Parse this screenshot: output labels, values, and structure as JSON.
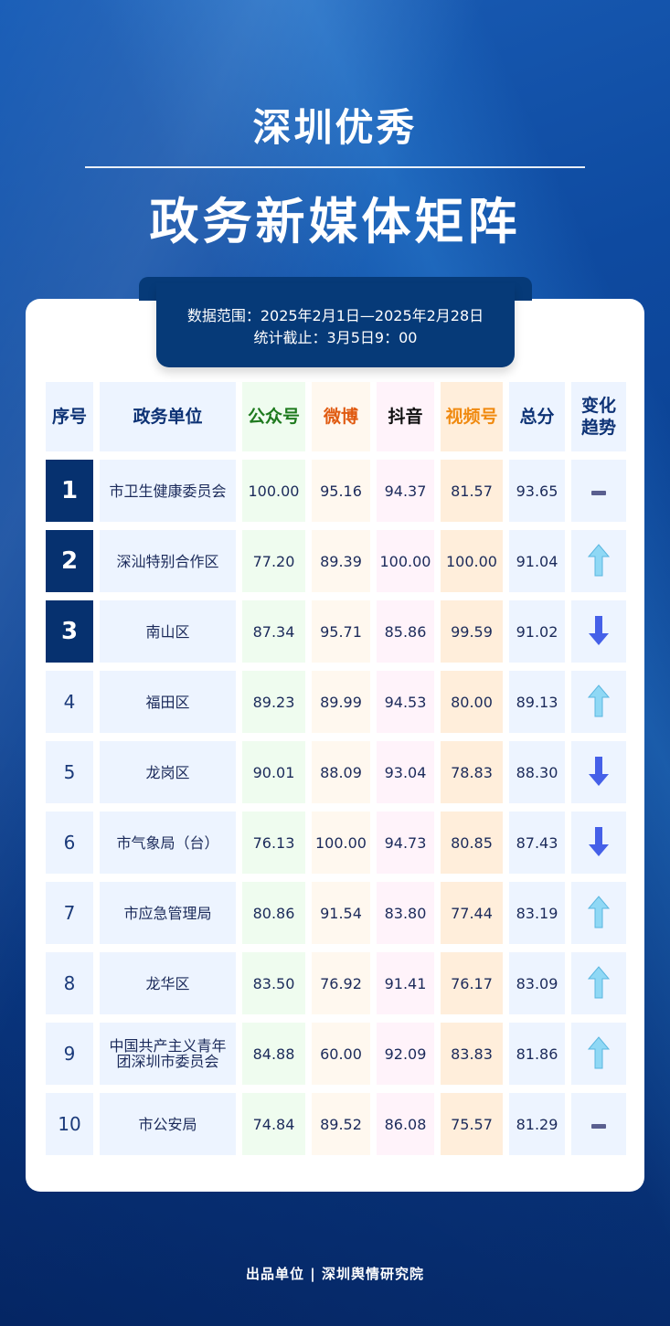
{
  "title": {
    "line1": "深圳优秀",
    "line2": "政务新媒体矩阵"
  },
  "info": {
    "range": "数据范围：2025年2月1日—2025年2月28日",
    "cutoff": "统计截止：3月5日9：00"
  },
  "colors": {
    "wechat": "#1e7a1e",
    "weibo": "#e05a10",
    "douyin": "#111111",
    "video": "#f08a10",
    "header": "#0d3275",
    "rank_top": "#06316f"
  },
  "headers": [
    "序号",
    "政务单位",
    "公众号",
    "微博",
    "抖音",
    "视频号",
    "总分",
    "变化趋势"
  ],
  "rows": [
    {
      "rank": "1",
      "unit": "市卫生健康委员会",
      "wechat": "100.00",
      "weibo": "95.16",
      "douyin": "94.37",
      "video": "81.57",
      "total": "93.65",
      "trend": "flat"
    },
    {
      "rank": "2",
      "unit": "深汕特别合作区",
      "wechat": "77.20",
      "weibo": "89.39",
      "douyin": "100.00",
      "video": "100.00",
      "total": "91.04",
      "trend": "up"
    },
    {
      "rank": "3",
      "unit": "南山区",
      "wechat": "87.34",
      "weibo": "95.71",
      "douyin": "85.86",
      "video": "99.59",
      "total": "91.02",
      "trend": "down"
    },
    {
      "rank": "4",
      "unit": "福田区",
      "wechat": "89.23",
      "weibo": "89.99",
      "douyin": "94.53",
      "video": "80.00",
      "total": "89.13",
      "trend": "up"
    },
    {
      "rank": "5",
      "unit": "龙岗区",
      "wechat": "90.01",
      "weibo": "88.09",
      "douyin": "93.04",
      "video": "78.83",
      "total": "88.30",
      "trend": "down"
    },
    {
      "rank": "6",
      "unit": "市气象局（台）",
      "wechat": "76.13",
      "weibo": "100.00",
      "douyin": "94.73",
      "video": "80.85",
      "total": "87.43",
      "trend": "down"
    },
    {
      "rank": "7",
      "unit": "市应急管理局",
      "wechat": "80.86",
      "weibo": "91.54",
      "douyin": "83.80",
      "video": "77.44",
      "total": "83.19",
      "trend": "up"
    },
    {
      "rank": "8",
      "unit": "龙华区",
      "wechat": "83.50",
      "weibo": "76.92",
      "douyin": "91.41",
      "video": "76.17",
      "total": "83.09",
      "trend": "up"
    },
    {
      "rank": "9",
      "unit": "中国共产主义青年团深圳市委员会",
      "wechat": "84.88",
      "weibo": "60.00",
      "douyin": "92.09",
      "video": "83.83",
      "total": "81.86",
      "trend": "up"
    },
    {
      "rank": "10",
      "unit": "市公安局",
      "wechat": "74.84",
      "weibo": "89.52",
      "douyin": "86.08",
      "video": "75.57",
      "total": "81.29",
      "trend": "flat"
    }
  ],
  "footer": "出品单位 | 深圳舆情研究院"
}
